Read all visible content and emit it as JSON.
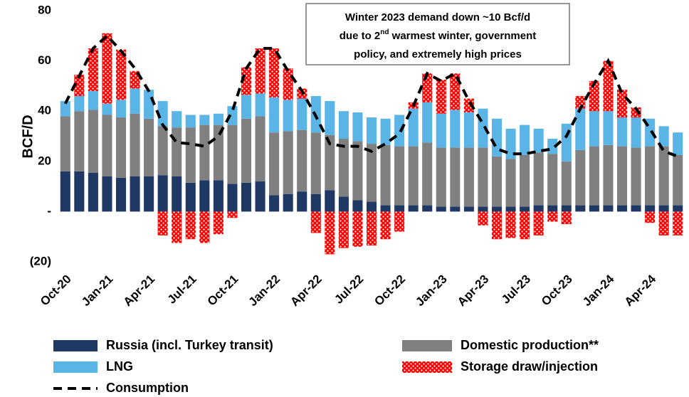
{
  "chart_data": {
    "type": "bar",
    "stacked": true,
    "ylabel": "BCF/D",
    "annotation": [
      "Winter 2023 demand down ~10 Bcf/d",
      "due to 2",
      "nd",
      " warmest winter, government",
      "policy, and extremely high prices"
    ],
    "categories": [
      "Oct-20",
      null,
      null,
      "Jan-21",
      null,
      null,
      "Apr-21",
      null,
      null,
      "Jul-21",
      null,
      null,
      "Oct-21",
      null,
      null,
      "Jan-22",
      null,
      null,
      "Apr-22",
      null,
      null,
      "Jul-22",
      null,
      null,
      "Oct-22",
      null,
      null,
      "Jan-23",
      null,
      null,
      "Apr-23",
      null,
      null,
      "Jul-23",
      null,
      null,
      "Oct-23",
      null,
      null,
      "Jan-24",
      null,
      null,
      "Apr-24",
      null,
      null
    ],
    "ylim": [
      -20,
      80
    ],
    "yticks": [
      {
        "value": -20,
        "label": "(20)"
      },
      {
        "value": 0,
        "label": "-"
      },
      20,
      40,
      60,
      80
    ],
    "series": [
      {
        "name": "Russia (incl. Turkey transit)",
        "color": "#1f3864",
        "type": "bar",
        "values": [
          16,
          16,
          15.5,
          14,
          13.5,
          14,
          14,
          14.5,
          14,
          11.5,
          12.5,
          12.5,
          11,
          11.5,
          12,
          6.5,
          7,
          8,
          7,
          8.5,
          6,
          4.5,
          4,
          2.5,
          2.5,
          2.5,
          2.5,
          2,
          2,
          2,
          2,
          2,
          2,
          2,
          2.5,
          2.5,
          2.5,
          2.5,
          2.5,
          2.5,
          2.5,
          2.5,
          2.5,
          2.5,
          2.5
        ]
      },
      {
        "name": "Domestic production**",
        "color": "#808080",
        "type": "bar",
        "values": [
          22,
          24,
          25,
          24.5,
          24,
          25,
          23,
          19.5,
          19.5,
          22,
          22,
          22,
          23.5,
          25.5,
          26,
          25,
          25,
          24.5,
          24.5,
          22,
          23,
          23.5,
          23,
          24,
          23.5,
          23.5,
          25,
          23.5,
          23.5,
          23.5,
          23.5,
          20,
          19,
          20.5,
          21,
          20.5,
          17.5,
          22,
          23.5,
          24,
          23.5,
          23,
          23.5,
          23.5,
          20
        ]
      },
      {
        "name": "LNG",
        "color": "#5bb4e6",
        "type": "bar",
        "values": [
          6,
          6,
          7.5,
          4.5,
          7,
          10,
          11.5,
          10,
          6.5,
          5,
          4,
          4.5,
          7.5,
          9.5,
          9,
          14,
          12.5,
          12.5,
          14.5,
          13.5,
          11,
          11.5,
          10.5,
          10.5,
          12.5,
          15,
          16,
          13.5,
          15,
          14,
          15.5,
          15,
          12,
          12,
          9.5,
          6,
          15,
          16.5,
          14,
          13.5,
          11.5,
          12,
          11,
          8,
          9
        ]
      },
      {
        "name": "Storage draw/injection",
        "color": "#ff0000",
        "type": "bar",
        "values": [
          0,
          8.5,
          17,
          28,
          20,
          7,
          0,
          -9.5,
          -12.5,
          -11,
          -12.5,
          -9,
          -2.5,
          11,
          18,
          19.5,
          12.5,
          4,
          -8.5,
          -17,
          -14.5,
          -14,
          -13.5,
          -11,
          -8,
          2.5,
          11.5,
          13.5,
          14.5,
          5.5,
          -5.5,
          -11,
          -10.5,
          -11,
          -9.5,
          -4,
          -5,
          5,
          12,
          20,
          11,
          4,
          -4.5,
          -9.5,
          -9.5
        ]
      },
      {
        "name": "Consumption",
        "color": "#000000",
        "type": "line",
        "values": [
          43,
          54,
          65,
          70,
          64,
          57,
          48,
          34.5,
          27.5,
          27,
          26,
          30,
          40,
          57,
          65,
          65,
          56,
          48,
          38,
          27,
          26,
          26,
          24,
          27,
          31,
          42,
          55,
          52,
          55,
          44,
          35,
          25,
          23,
          23,
          24,
          25,
          30,
          41,
          51,
          60,
          47,
          41,
          33,
          24,
          22
        ]
      }
    ]
  }
}
